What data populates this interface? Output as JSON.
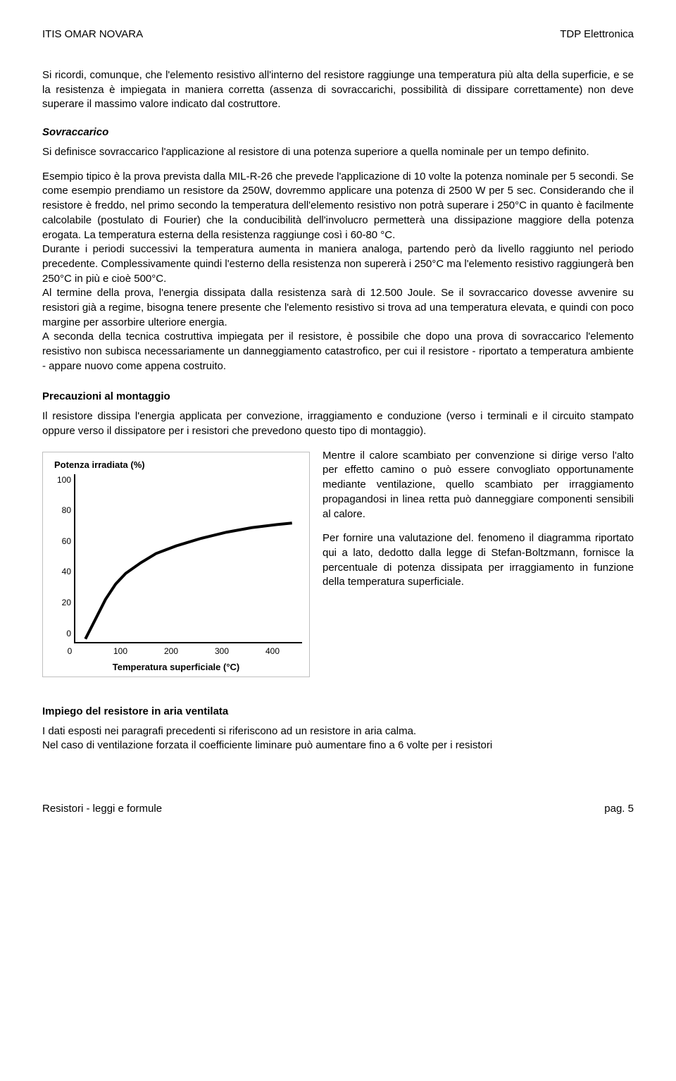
{
  "header": {
    "left": "ITIS OMAR NOVARA",
    "right": "TDP Elettronica"
  },
  "intro": "Si ricordi, comunque, che l'elemento resistivo all'interno del resistore raggiunge una temperatura più alta della superficie, e se la resistenza è impiegata in maniera corretta (assenza di sovraccarichi, possibilità di dissipare correttamente) non deve superare il massimo valore indicato dal costruttore.",
  "sovraccarico": {
    "heading": "Sovraccarico",
    "p1": "Si definisce sovraccarico l'applicazione al resistore di una potenza superiore a quella nominale per un tempo definito.",
    "p2": "Esempio tipico è la prova prevista dalla MIL-R-26 che prevede l'applicazione di 10 volte la potenza nominale per 5 secondi.  Se come esempio prendiamo un resistore da 250W, dovremmo applicare una potenza di 2500 W per 5 sec.   Considerando che il resistore è freddo, nel primo secondo la temperatura dell'elemento resistivo non potrà superare i 250°C in quanto è facilmente calcolabile (postulato di Fourier) che la conducibilità dell'involucro permetterà una dissipazione maggiore della potenza erogata.   La temperatura esterna della resistenza raggiunge così i 60-80 °C.",
    "p3": "Durante i periodi successivi la temperatura aumenta in maniera analoga, partendo però da livello raggiunto nel periodo precedente.  Complessivamente quindi l'esterno della resistenza non supererà i 250°C ma l'elemento resistivo raggiungerà ben 250°C in più e cioè 500°C.",
    "p4": "Al termine della prova, l'energia dissipata dalla resistenza sarà di 12.500 Joule.  Se il sovraccarico dovesse avvenire su resistori già a regime, bisogna tenere presente che l'elemento resistivo si trova ad una temperatura elevata, e quindi con poco margine per assorbire ulteriore energia.",
    "p5": "A seconda della tecnica costruttiva impiegata per il resistore, è possibile che dopo una prova di sovraccarico l'elemento resistivo non subisca necessariamente un danneggiamento catastrofico, per cui il resistore - riportato a temperatura ambiente - appare nuovo come appena costruito."
  },
  "precauzioni": {
    "heading": "Precauzioni al montaggio",
    "p1": "Il resistore dissipa l'energia applicata per convezione, irraggiamento e conduzione (verso i terminali e il circuito stampato oppure verso il dissipatore per i resistori che prevedono questo tipo di montaggio).",
    "p2": "Mentre il calore scambiato per convenzione si dirige verso l'alto per effetto camino o può essere convogliato opportunamente mediante ventilazione, quello scambiato per irraggiamento propagandosi in linea retta può danneggiare componenti sensibili al calore.",
    "p3": "Per fornire una valutazione del. fenomeno il diagramma riportato qui a lato, dedotto dalla legge di Stefan-Boltzmann, fornisce la percentuale di potenza dissipata per irraggiamento in funzione della temperatura superficiale."
  },
  "chart": {
    "type": "line",
    "ylabel": "Potenza irradiata (%)",
    "xlabel": "Temperatura superficiale (°C)",
    "xlim": [
      0,
      450
    ],
    "ylim": [
      0,
      110
    ],
    "xticks": [
      0,
      100,
      200,
      300,
      400
    ],
    "yticks": [
      0,
      20,
      40,
      60,
      80,
      100
    ],
    "line_color": "#000000",
    "line_width": 4,
    "background_color": "#ffffff",
    "border_color": "#bfbfbf",
    "points": [
      {
        "x": 20,
        "y": 2
      },
      {
        "x": 40,
        "y": 15
      },
      {
        "x": 60,
        "y": 28
      },
      {
        "x": 80,
        "y": 38
      },
      {
        "x": 100,
        "y": 45
      },
      {
        "x": 130,
        "y": 52
      },
      {
        "x": 160,
        "y": 58
      },
      {
        "x": 200,
        "y": 63
      },
      {
        "x": 250,
        "y": 68
      },
      {
        "x": 300,
        "y": 72
      },
      {
        "x": 350,
        "y": 75
      },
      {
        "x": 400,
        "y": 77
      },
      {
        "x": 430,
        "y": 78
      }
    ]
  },
  "impiego": {
    "heading": "Impiego del resistore in aria ventilata",
    "p1": "I dati esposti nei paragrafi precedenti si riferiscono ad un resistore in aria calma.",
    "p2": "Nel caso di ventilazione forzata il coefficiente liminare può aumentare fino a 6 volte per i resistori"
  },
  "footer": {
    "left": "Resistori - leggi e formule",
    "right": "pag. 5"
  }
}
